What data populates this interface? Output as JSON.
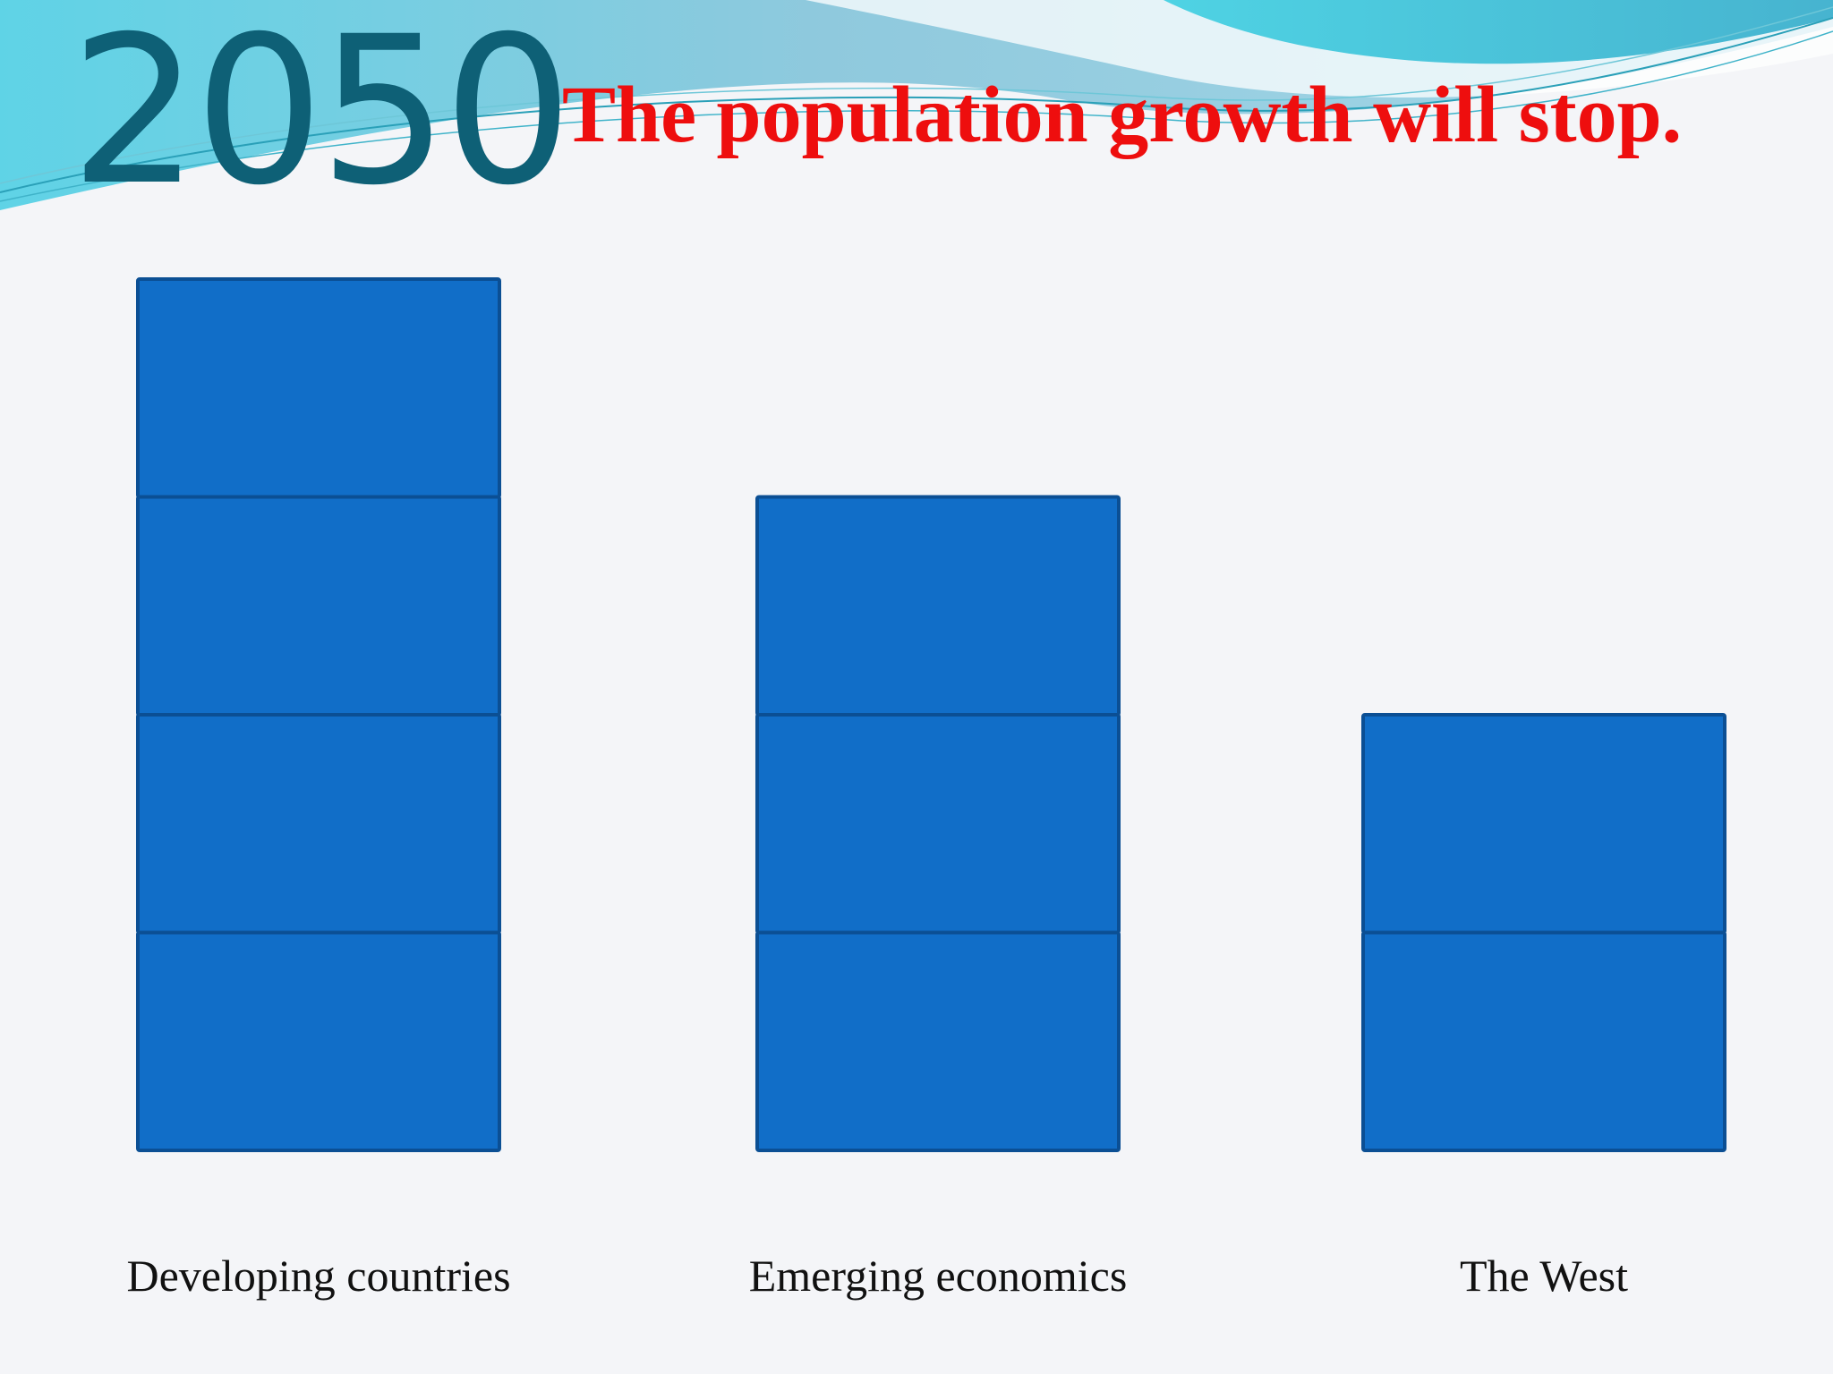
{
  "slide": {
    "year": "2050",
    "headline": "The population growth will stop."
  },
  "colors": {
    "block_fill": "#116ec8",
    "block_stroke": "#0b4f94",
    "year_color": "#0e6076",
    "headline_color": "#ee0e0e"
  },
  "chart_data": {
    "type": "bar",
    "title": "",
    "xlabel": "",
    "ylabel": "",
    "categories": [
      "Developing countries",
      "Emerging economics",
      "The West"
    ],
    "values": [
      4,
      3,
      2
    ],
    "ylim": [
      0,
      4
    ],
    "grid": false,
    "legend": "none"
  }
}
